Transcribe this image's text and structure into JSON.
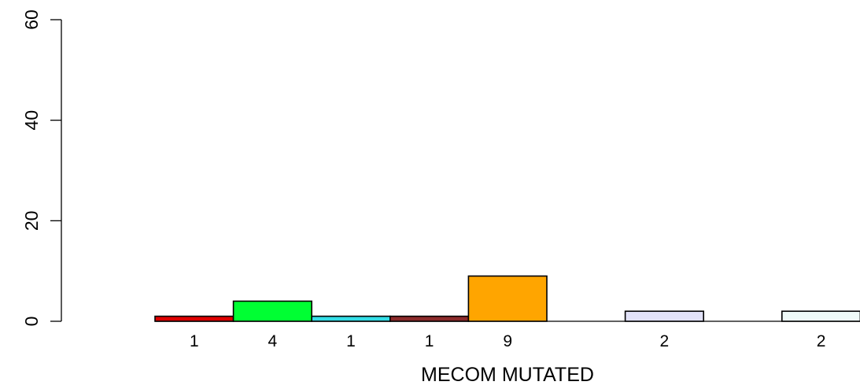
{
  "chart_data": {
    "type": "bar",
    "title": "",
    "xlabel": "MECOM MUTATED",
    "ylabel": "",
    "ylim": [
      0,
      60
    ],
    "yticks": [
      0,
      20,
      40,
      60
    ],
    "grid": false,
    "legend": "none",
    "bars": [
      {
        "slot": 1,
        "value": 1,
        "label": "1",
        "color": "#dd0000"
      },
      {
        "slot": 2,
        "value": 4,
        "label": "4",
        "color": "#00ff33"
      },
      {
        "slot": 3,
        "value": 1,
        "label": "1",
        "color": "#33dde6"
      },
      {
        "slot": 4,
        "value": 1,
        "label": "1",
        "color": "#8b2a2a"
      },
      {
        "slot": 5,
        "value": 9,
        "label": "9",
        "color": "#ffa500"
      },
      {
        "slot": 7,
        "value": 2,
        "label": "2",
        "color": "#e2e2f8"
      },
      {
        "slot": 9,
        "value": 2,
        "label": "2",
        "color": "#effaf8"
      }
    ]
  }
}
